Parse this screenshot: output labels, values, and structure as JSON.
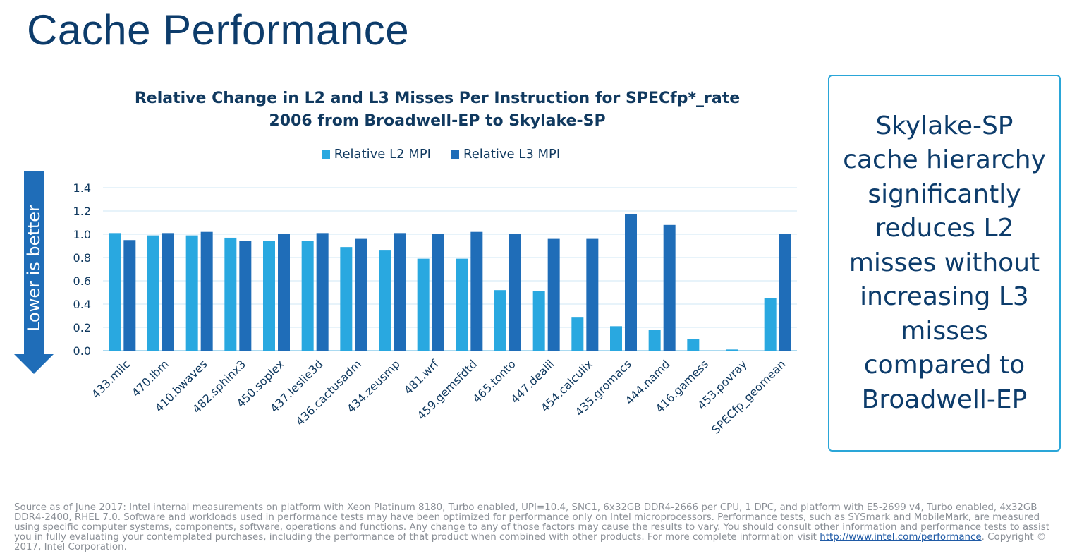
{
  "page": {
    "title": "Cache Performance",
    "y_direction_note": "Lower is better",
    "callout": "Skylake-SP cache hierarchy significantly reduces L2 misses without increasing L3 misses compared to Broadwell-EP",
    "footnote": {
      "text": "Source as of June 2017: Intel internal measurements on platform with Xeon Platinum 8180, Turbo enabled, UPI=10.4, SNC1, 6x32GB DDR4-2666 per CPU, 1 DPC, and platform with E5-2699 v4, Turbo enabled, 4x32GB DDR4-2400, RHEL 7.0. Software and workloads used in performance tests may have been optimized for performance only on Intel microprocessors. Performance tests, such as SYSmark and MobileMark, are measured using specific computer systems, components, software, operations and functions. Any change to any of those factors may cause the results to vary. You should consult other information and performance tests to assist you in fully evaluating your contemplated purchases, including the performance of that product when combined with other products.  For more complete information visit",
      "link": "http://www.intel.com/performance",
      "tail": ".  Copyright © 2017, Intel Corporation."
    }
  },
  "chart_data": {
    "type": "bar",
    "title": "Relative Change in L2 and L3 Misses Per Instruction for SPECfp*_rate 2006 from Broadwell-EP to Skylake-SP",
    "xlabel": "",
    "ylabel": "",
    "ylim": [
      0,
      1.4
    ],
    "yticks": [
      "0.0",
      "0.2",
      "0.4",
      "0.6",
      "0.8",
      "1.0",
      "1.2",
      "1.4"
    ],
    "grid": true,
    "legend_position": "top",
    "categories": [
      "433.milc",
      "470.lbm",
      "410.bwaves",
      "482.sphinx3",
      "450.soplex",
      "437.leslie3d",
      "436.cactusadm",
      "434.zeusmp",
      "481.wrf",
      "459.gemsfdtd",
      "465.tonto",
      "447.dealii",
      "454.calculix",
      "435.gromacs",
      "444.namd",
      "416.gamess",
      "453.povray",
      "SPECfp_geomean"
    ],
    "series": [
      {
        "name": "Relative L2 MPI",
        "color": "#29a8e0",
        "values": [
          1.01,
          0.99,
          0.99,
          0.97,
          0.94,
          0.94,
          0.89,
          0.86,
          0.79,
          0.79,
          0.52,
          0.51,
          0.29,
          0.21,
          0.18,
          0.1,
          0.01,
          0.45
        ]
      },
      {
        "name": "Relative L3 MPI",
        "color": "#1f6db8",
        "values": [
          0.95,
          1.01,
          1.02,
          0.94,
          1.0,
          1.01,
          0.96,
          1.01,
          1.0,
          1.02,
          1.0,
          0.96,
          0.96,
          1.17,
          1.08,
          null,
          null,
          1.0
        ]
      }
    ]
  }
}
